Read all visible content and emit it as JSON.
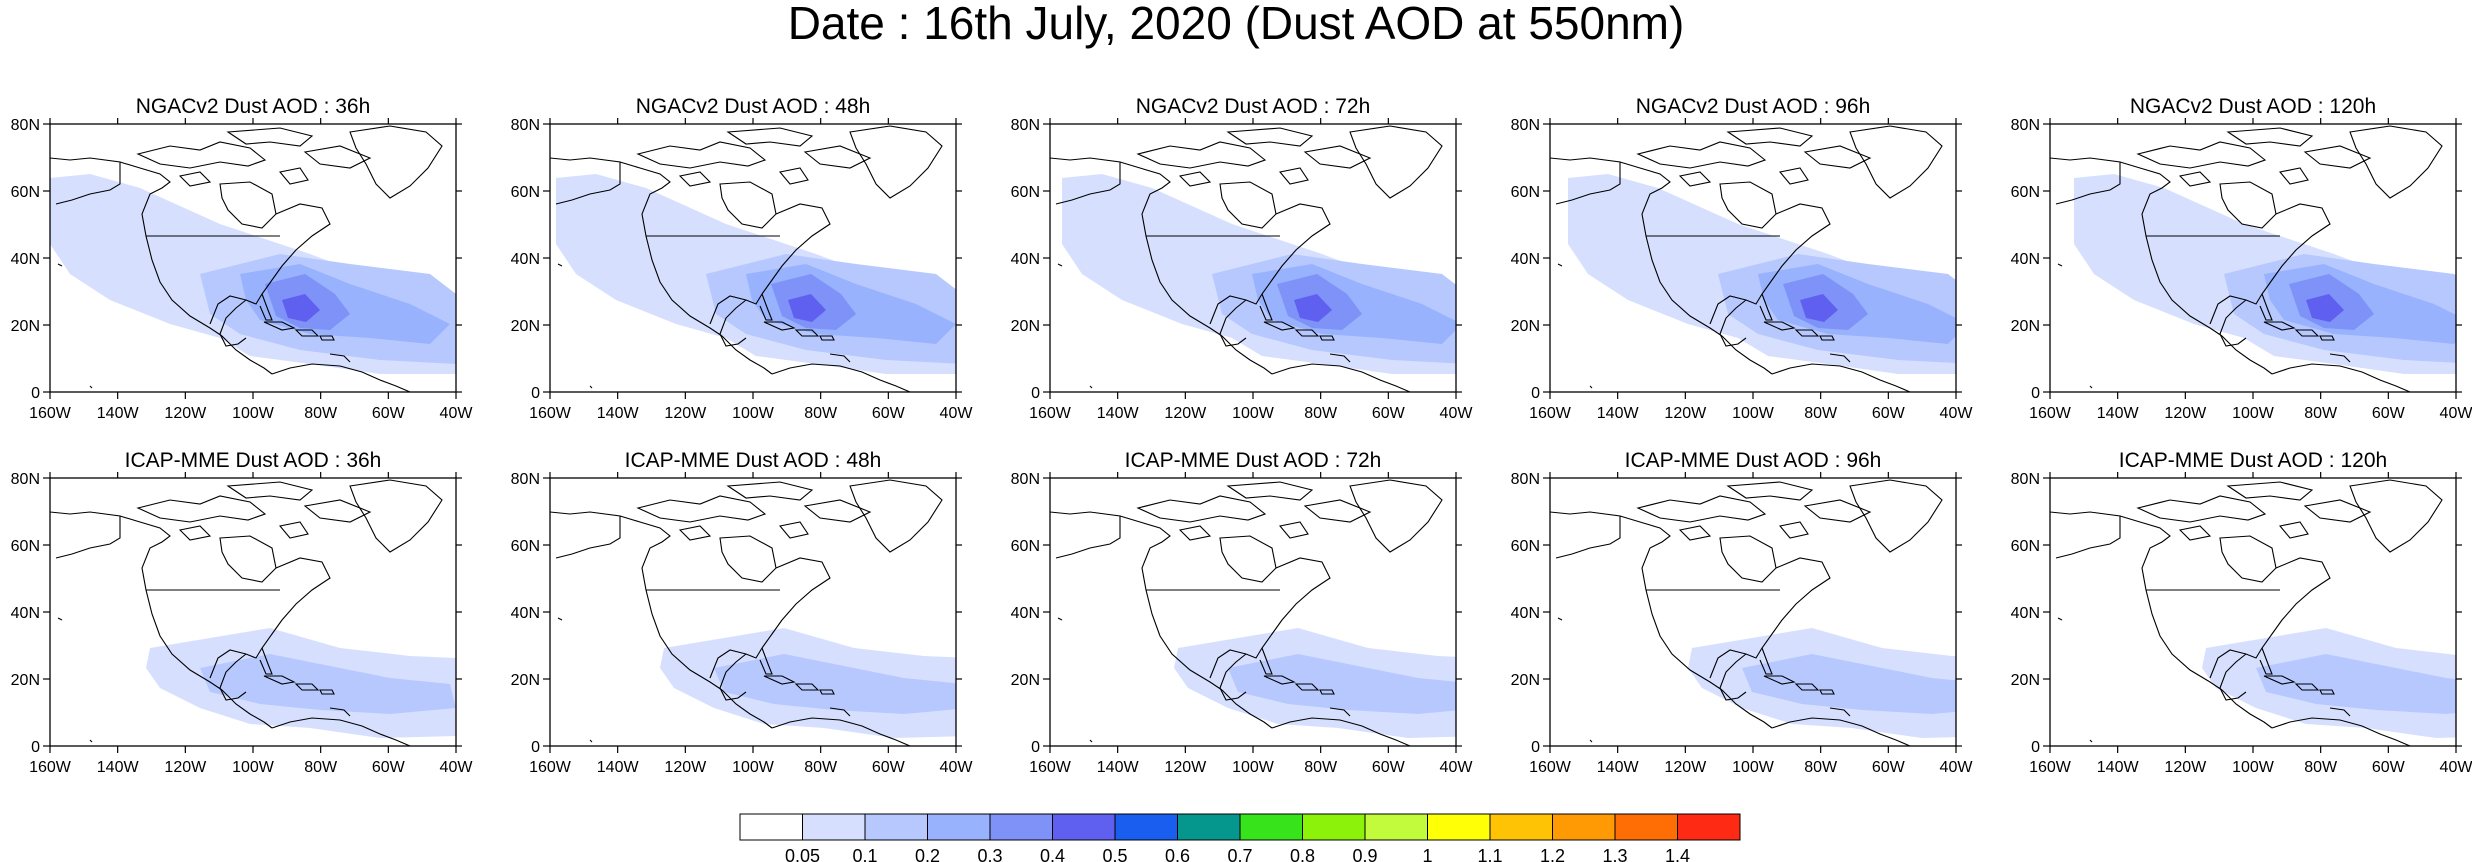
{
  "title": "Date : 16th July, 2020 (Dust AOD at 550nm)",
  "panels": [
    {
      "title": "NGACv2 Dust AOD : 36h"
    },
    {
      "title": "NGACv2 Dust AOD : 48h"
    },
    {
      "title": "NGACv2 Dust AOD : 72h"
    },
    {
      "title": "NGACv2 Dust AOD : 96h"
    },
    {
      "title": "NGACv2 Dust AOD : 120h"
    },
    {
      "title": "ICAP-MME Dust AOD : 36h"
    },
    {
      "title": "ICAP-MME Dust AOD : 48h"
    },
    {
      "title": "ICAP-MME Dust AOD : 72h"
    },
    {
      "title": "ICAP-MME Dust AOD : 96h"
    },
    {
      "title": "ICAP-MME Dust AOD : 120h"
    }
  ],
  "x_ticks": [
    "160W",
    "140W",
    "120W",
    "100W",
    "80W",
    "60W",
    "40W"
  ],
  "y_ticks": [
    "80N",
    "60N",
    "40N",
    "20N",
    "0"
  ],
  "colorbar": {
    "labels": [
      "0.05",
      "0.1",
      "0.2",
      "0.3",
      "0.4",
      "0.5",
      "0.6",
      "0.7",
      "0.8",
      "0.9",
      "1",
      "1.1",
      "1.2",
      "1.3",
      "1.4"
    ],
    "colors": [
      "#ffffff",
      "#d6e0fe",
      "#b6c8fe",
      "#98b2fd",
      "#7e92f8",
      "#6060f0",
      "#1a5ef0",
      "#05968e",
      "#37e41c",
      "#8cf20a",
      "#c2fa3c",
      "#ffff05",
      "#ffc305",
      "#ff9a05",
      "#ff6e05",
      "#ff2a14"
    ]
  }
}
